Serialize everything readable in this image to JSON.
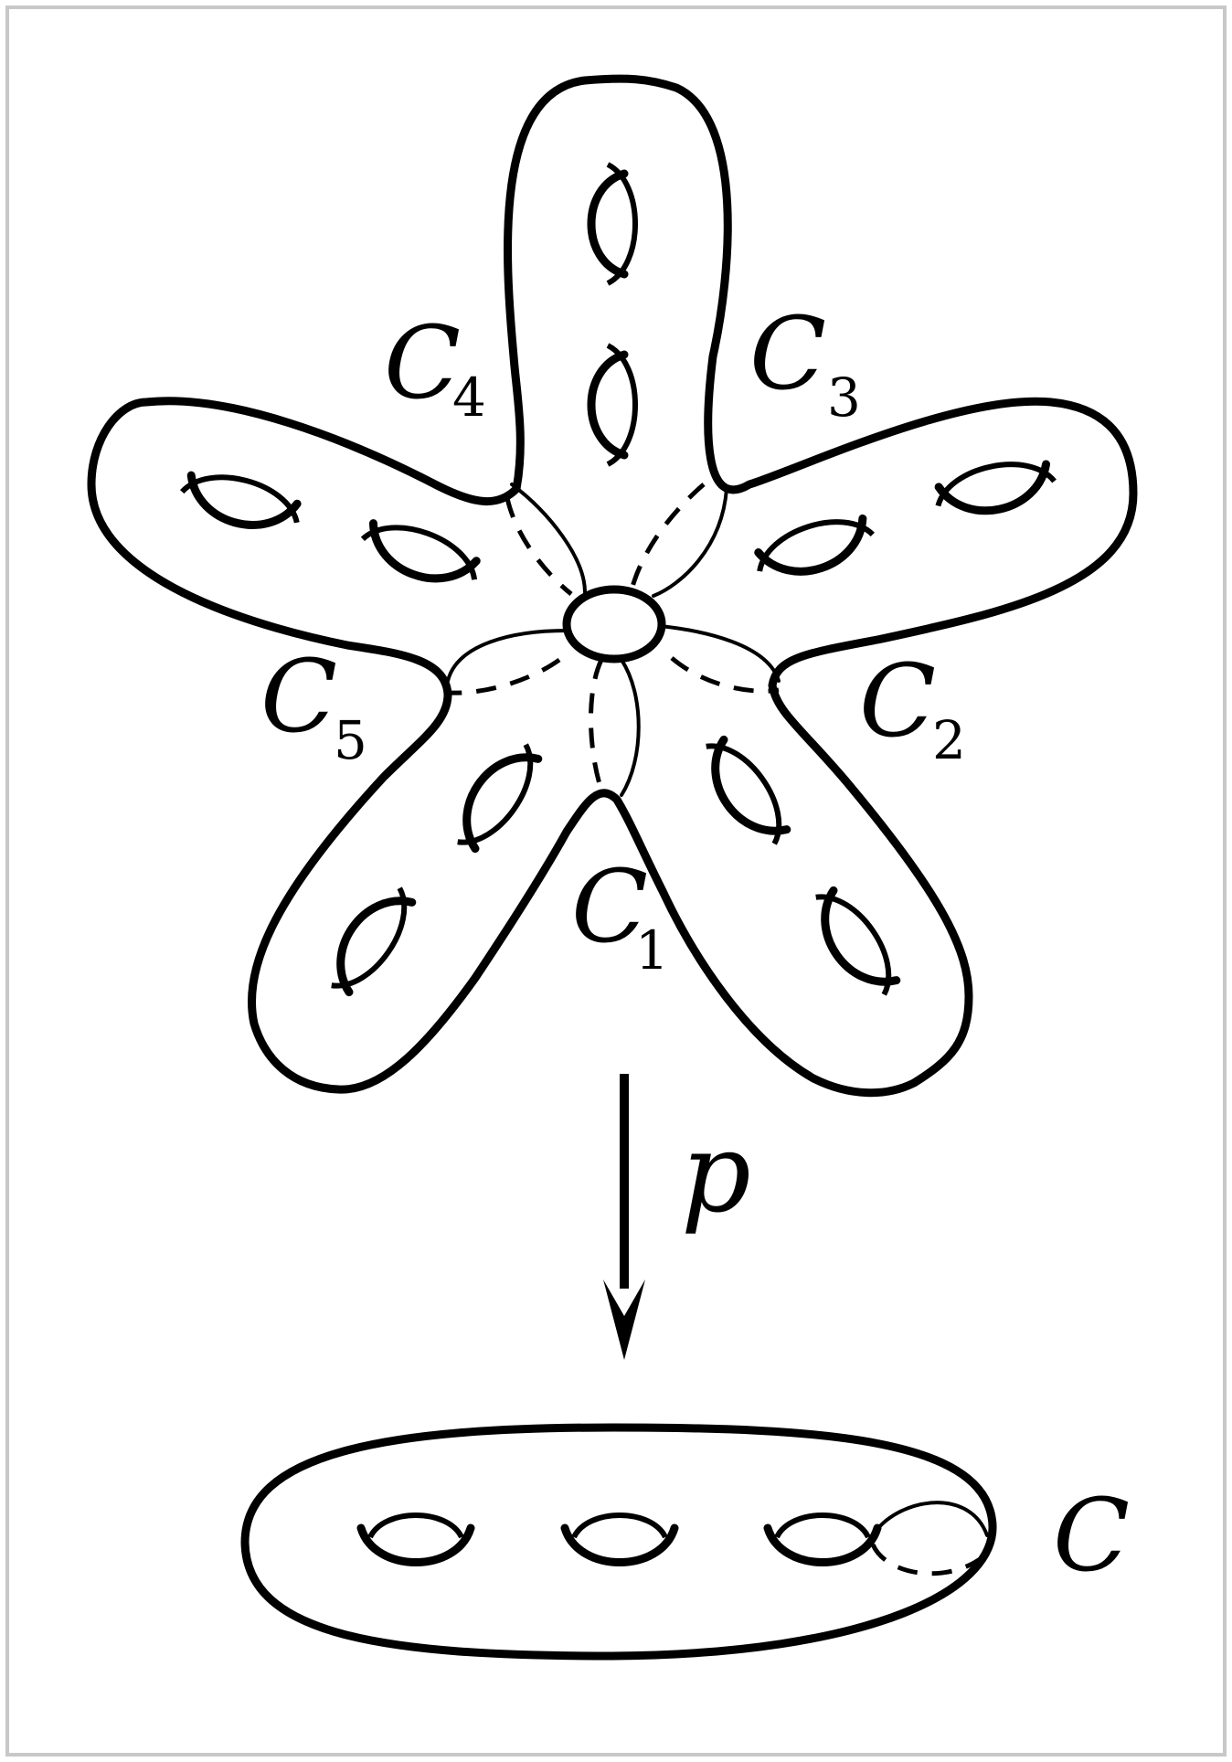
{
  "labels": {
    "c1": {
      "letter": "C",
      "sub": "1"
    },
    "c2": {
      "letter": "C",
      "sub": "2"
    },
    "c3": {
      "letter": "C",
      "sub": "3"
    },
    "c4": {
      "letter": "C",
      "sub": "4"
    },
    "c5": {
      "letter": "C",
      "sub": "5"
    },
    "map": "p",
    "base": "C"
  }
}
